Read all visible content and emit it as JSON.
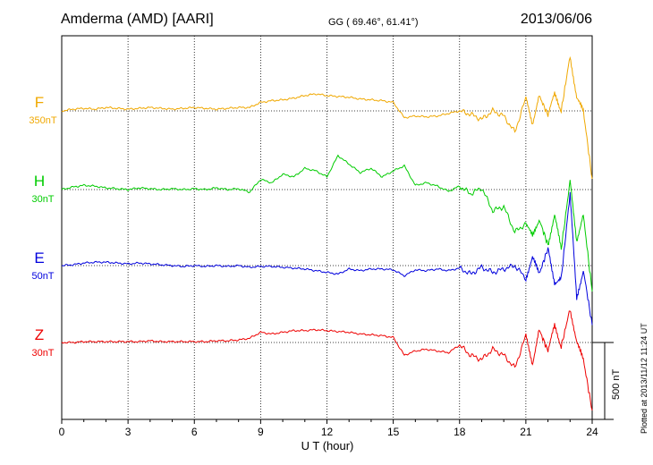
{
  "header": {
    "station": "Amderma (AMD)  [AARI]",
    "coords": "GG ( 69.46°,  61.41°)",
    "date": "2013/06/06"
  },
  "footer": {
    "plotted": "Plotted at 2013/11/12 11:24 UT",
    "scale_label": "500 nT"
  },
  "chart_data": {
    "type": "line",
    "title": "Amderma (AMD)  [AARI]",
    "xlabel": "U T (hour)",
    "ylabel": "",
    "xlim": [
      0,
      24
    ],
    "x_ticks": [
      "0",
      "3",
      "6",
      "9",
      "12",
      "15",
      "18",
      "21",
      "24"
    ],
    "grid": true,
    "scale_bar": "500 nT",
    "series": [
      {
        "name": "F",
        "scale": "350nT",
        "color": "#f0a800",
        "x": [
          0,
          0.5,
          1,
          1.5,
          2,
          2.5,
          3,
          3.5,
          4,
          4.5,
          5,
          5.5,
          6,
          6.5,
          7,
          7.5,
          8,
          8.5,
          9,
          9.5,
          10,
          10.5,
          11,
          11.5,
          12,
          12.5,
          13,
          13.5,
          14,
          14.5,
          15,
          15.5,
          16,
          16.5,
          17,
          17.5,
          18,
          18.5,
          19,
          19.5,
          20,
          20.5,
          21,
          21.3,
          21.6,
          22,
          22.3,
          22.6,
          23,
          23.3,
          23.6,
          24
        ],
        "y": [
          0,
          2,
          3,
          2,
          4,
          3,
          2,
          3,
          4,
          3,
          2,
          3,
          4,
          3,
          2,
          3,
          4,
          4,
          10,
          12,
          13,
          15,
          18,
          20,
          18,
          17,
          16,
          14,
          13,
          12,
          10,
          -8,
          -6,
          -7,
          -6,
          -3,
          0,
          -4,
          -10,
          0,
          -6,
          -25,
          15,
          -15,
          18,
          -5,
          20,
          0,
          65,
          15,
          0,
          -80
        ]
      },
      {
        "name": "H",
        "scale": "30nT",
        "color": "#00cc00",
        "x": [
          0,
          0.5,
          1,
          1.5,
          2,
          2.5,
          3,
          3.5,
          4,
          4.5,
          5,
          5.5,
          6,
          6.5,
          7,
          7.5,
          8,
          8.5,
          9,
          9.5,
          10,
          10.5,
          11,
          11.5,
          12,
          12.5,
          13,
          13.5,
          14,
          14.5,
          15,
          15.5,
          16,
          16.5,
          17,
          17.5,
          18,
          18.5,
          19,
          19.5,
          20,
          20.5,
          21,
          21.3,
          21.6,
          22,
          22.3,
          22.6,
          23,
          23.3,
          23.6,
          24
        ],
        "y": [
          0,
          3,
          5,
          4,
          2,
          1,
          0,
          2,
          1,
          0,
          1,
          0,
          1,
          0,
          2,
          0,
          1,
          -3,
          12,
          8,
          18,
          15,
          25,
          22,
          15,
          40,
          30,
          20,
          25,
          15,
          22,
          28,
          5,
          8,
          4,
          -2,
          4,
          -5,
          2,
          -25,
          -20,
          -50,
          -40,
          -55,
          -35,
          -65,
          -30,
          -70,
          10,
          -60,
          -30,
          -120
        ]
      },
      {
        "name": "E",
        "scale": "50nT",
        "color": "#0000dd",
        "x": [
          0,
          0.5,
          1,
          1.5,
          2,
          2.5,
          3,
          3.5,
          4,
          4.5,
          5,
          5.5,
          6,
          6.5,
          7,
          7.5,
          8,
          8.5,
          9,
          9.5,
          10,
          10.5,
          11,
          11.5,
          12,
          12.5,
          13,
          13.5,
          14,
          14.5,
          15,
          15.5,
          16,
          16.5,
          17,
          17.5,
          18,
          18.5,
          19,
          19.5,
          20,
          20.5,
          21,
          21.3,
          21.6,
          22,
          22.3,
          22.6,
          23,
          23.3,
          23.6,
          24
        ],
        "y": [
          0,
          1,
          3,
          4,
          4,
          3,
          2,
          3,
          2,
          1,
          0,
          -1,
          0,
          -1,
          0,
          -1,
          0,
          -2,
          -1,
          -1,
          -2,
          -3,
          -4,
          -6,
          -8,
          -10,
          -4,
          -6,
          -4,
          -4,
          -5,
          -12,
          -5,
          -6,
          -4,
          -6,
          -3,
          -10,
          -2,
          -8,
          -4,
          0,
          -15,
          10,
          -10,
          20,
          -20,
          -15,
          85,
          -40,
          -5,
          -70
        ]
      },
      {
        "name": "Z",
        "scale": "30nT",
        "color": "#ee0000",
        "x": [
          0,
          0.5,
          1,
          1.5,
          2,
          2.5,
          3,
          3.5,
          4,
          4.5,
          5,
          5.5,
          6,
          6.5,
          7,
          7.5,
          8,
          8.5,
          9,
          9.5,
          10,
          10.5,
          11,
          11.5,
          12,
          12.5,
          13,
          13.5,
          14,
          14.5,
          15,
          15.5,
          16,
          16.5,
          17,
          17.5,
          18,
          18.5,
          19,
          19.5,
          20,
          20.5,
          21,
          21.3,
          21.6,
          22,
          22.3,
          22.6,
          23,
          23.3,
          23.6,
          24
        ],
        "y": [
          0,
          0,
          1,
          1,
          1,
          1,
          1,
          1,
          2,
          1,
          1,
          1,
          1,
          1,
          2,
          2,
          3,
          5,
          12,
          10,
          12,
          14,
          14,
          15,
          14,
          13,
          12,
          10,
          9,
          8,
          6,
          -15,
          -10,
          -8,
          -10,
          -12,
          -3,
          -15,
          -20,
          -8,
          -15,
          -30,
          8,
          -25,
          15,
          -10,
          20,
          -5,
          40,
          0,
          -20,
          -80
        ]
      }
    ]
  }
}
